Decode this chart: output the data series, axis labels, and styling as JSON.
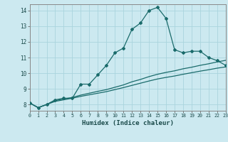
{
  "title": "",
  "xlabel": "Humidex (Indice chaleur)",
  "ylabel": "",
  "background_color": "#cce9f0",
  "grid_color": "#aad4dd",
  "line_color": "#1a6b6b",
  "x_data": [
    0,
    1,
    2,
    3,
    4,
    5,
    6,
    7,
    8,
    9,
    10,
    11,
    12,
    13,
    14,
    15,
    16,
    17,
    18,
    19,
    20,
    21,
    22,
    23
  ],
  "y_main": [
    8.1,
    7.8,
    8.0,
    8.3,
    8.4,
    8.4,
    9.3,
    9.3,
    9.9,
    10.5,
    11.3,
    11.6,
    12.8,
    13.2,
    14.0,
    14.2,
    13.5,
    11.5,
    11.3,
    11.4,
    11.4,
    11.0,
    10.8,
    10.5
  ],
  "y_line2": [
    8.1,
    7.8,
    8.0,
    8.25,
    8.35,
    8.45,
    8.6,
    8.72,
    8.84,
    8.95,
    9.1,
    9.25,
    9.45,
    9.6,
    9.78,
    9.93,
    10.05,
    10.15,
    10.28,
    10.38,
    10.5,
    10.6,
    10.72,
    10.82
  ],
  "y_line3": [
    8.1,
    7.8,
    8.0,
    8.2,
    8.3,
    8.4,
    8.52,
    8.62,
    8.72,
    8.82,
    8.95,
    9.08,
    9.22,
    9.36,
    9.5,
    9.63,
    9.73,
    9.82,
    9.93,
    10.03,
    10.13,
    10.22,
    10.32,
    10.4
  ],
  "xlim": [
    0,
    23
  ],
  "ylim": [
    7.6,
    14.4
  ],
  "yticks": [
    8,
    9,
    10,
    11,
    12,
    13,
    14
  ],
  "xticks": [
    0,
    1,
    2,
    3,
    4,
    5,
    6,
    7,
    8,
    9,
    10,
    11,
    12,
    13,
    14,
    15,
    16,
    17,
    18,
    19,
    20,
    21,
    22,
    23
  ],
  "marker": "D",
  "markersize": 2.0,
  "linewidth": 0.9
}
